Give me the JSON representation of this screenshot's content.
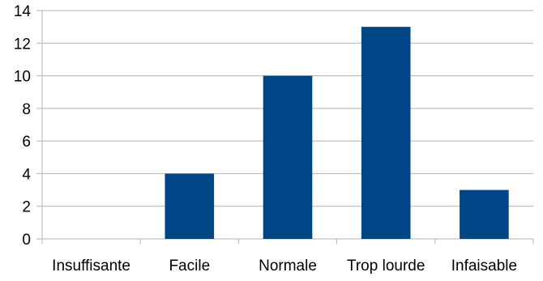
{
  "chart_data": {
    "type": "bar",
    "categories": [
      "Insuffisante",
      "Facile",
      "Normale",
      "Trop lourde",
      "Infaisable"
    ],
    "series": [
      {
        "values": [
          0,
          4,
          10,
          13,
          3
        ],
        "color": "#004586"
      }
    ],
    "title": "",
    "xlabel": "",
    "ylabel": "",
    "ylim": [
      0,
      14
    ],
    "yticks": [
      0,
      2,
      4,
      6,
      8,
      10,
      12,
      14
    ],
    "grid": true,
    "legend": "none"
  }
}
